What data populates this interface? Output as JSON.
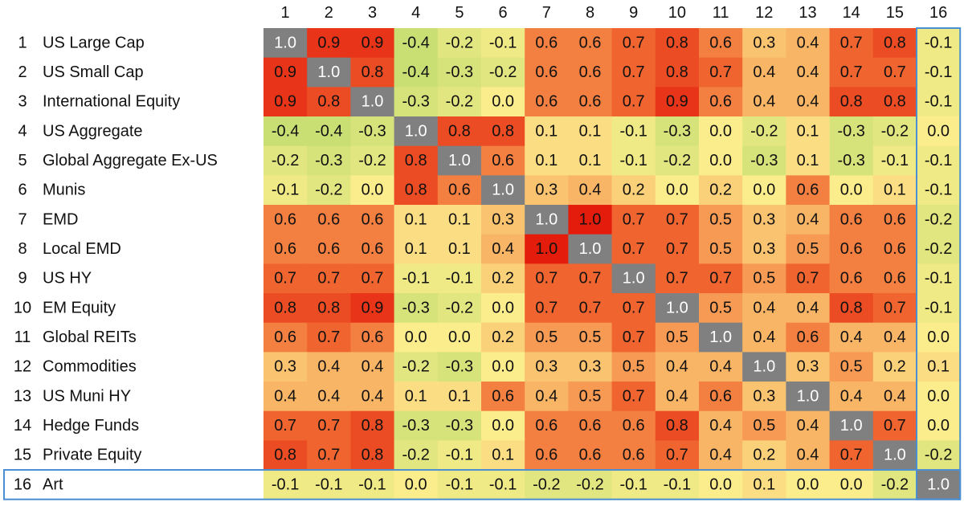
{
  "chart_data": {
    "type": "heatmap",
    "columns": [
      "1",
      "2",
      "3",
      "4",
      "5",
      "6",
      "7",
      "8",
      "9",
      "10",
      "11",
      "12",
      "13",
      "14",
      "15",
      "16"
    ],
    "row_numbers": [
      "1",
      "2",
      "3",
      "4",
      "5",
      "6",
      "7",
      "8",
      "9",
      "10",
      "11",
      "12",
      "13",
      "14",
      "15",
      "16"
    ],
    "row_names": [
      "US Large Cap",
      "US Small Cap",
      "International Equity",
      "US Aggregate",
      "Global Aggregate Ex-US",
      "Munis",
      "EMD",
      "Local EMD",
      "US HY",
      "EM Equity",
      "Global REITs",
      "Commodities",
      "US Muni HY",
      "Hedge Funds",
      "Private Equity",
      "Art"
    ],
    "values": [
      [
        1.0,
        0.9,
        0.9,
        -0.4,
        -0.2,
        -0.1,
        0.6,
        0.6,
        0.7,
        0.8,
        0.6,
        0.3,
        0.4,
        0.7,
        0.8,
        -0.1
      ],
      [
        0.9,
        1.0,
        0.8,
        -0.4,
        -0.3,
        -0.2,
        0.6,
        0.6,
        0.7,
        0.8,
        0.7,
        0.4,
        0.4,
        0.7,
        0.7,
        -0.1
      ],
      [
        0.9,
        0.8,
        1.0,
        -0.3,
        -0.2,
        0.0,
        0.6,
        0.6,
        0.7,
        0.9,
        0.6,
        0.4,
        0.4,
        0.8,
        0.8,
        -0.1
      ],
      [
        -0.4,
        -0.4,
        -0.3,
        1.0,
        0.8,
        0.8,
        0.1,
        0.1,
        -0.1,
        -0.3,
        0.0,
        -0.2,
        0.1,
        -0.3,
        -0.2,
        0.0
      ],
      [
        -0.2,
        -0.3,
        -0.2,
        0.8,
        1.0,
        0.6,
        0.1,
        0.1,
        -0.1,
        -0.2,
        0.0,
        -0.3,
        0.1,
        -0.3,
        -0.1,
        -0.1
      ],
      [
        -0.1,
        -0.2,
        0.0,
        0.8,
        0.6,
        1.0,
        0.3,
        0.4,
        0.2,
        0.0,
        0.2,
        0.0,
        0.6,
        0.0,
        0.1,
        -0.1
      ],
      [
        0.6,
        0.6,
        0.6,
        0.1,
        0.1,
        0.3,
        1.0,
        1.0,
        0.7,
        0.7,
        0.5,
        0.3,
        0.4,
        0.6,
        0.6,
        -0.2
      ],
      [
        0.6,
        0.6,
        0.6,
        0.1,
        0.1,
        0.4,
        1.0,
        1.0,
        0.7,
        0.7,
        0.5,
        0.3,
        0.5,
        0.6,
        0.6,
        -0.2
      ],
      [
        0.7,
        0.7,
        0.7,
        -0.1,
        -0.1,
        0.2,
        0.7,
        0.7,
        1.0,
        0.7,
        0.7,
        0.5,
        0.7,
        0.6,
        0.6,
        -0.1
      ],
      [
        0.8,
        0.8,
        0.9,
        -0.3,
        -0.2,
        0.0,
        0.7,
        0.7,
        0.7,
        1.0,
        0.5,
        0.4,
        0.4,
        0.8,
        0.7,
        -0.1
      ],
      [
        0.6,
        0.7,
        0.6,
        0.0,
        0.0,
        0.2,
        0.5,
        0.5,
        0.7,
        0.5,
        1.0,
        0.4,
        0.6,
        0.4,
        0.4,
        0.0
      ],
      [
        0.3,
        0.4,
        0.4,
        -0.2,
        -0.3,
        0.0,
        0.3,
        0.3,
        0.5,
        0.4,
        0.4,
        1.0,
        0.3,
        0.5,
        0.2,
        0.1
      ],
      [
        0.4,
        0.4,
        0.4,
        0.1,
        0.1,
        0.6,
        0.4,
        0.5,
        0.7,
        0.4,
        0.6,
        0.3,
        1.0,
        0.4,
        0.4,
        0.0
      ],
      [
        0.7,
        0.7,
        0.8,
        -0.3,
        -0.3,
        0.0,
        0.6,
        0.6,
        0.6,
        0.8,
        0.4,
        0.5,
        0.4,
        1.0,
        0.7,
        0.0
      ],
      [
        0.8,
        0.7,
        0.8,
        -0.2,
        -0.1,
        0.1,
        0.6,
        0.6,
        0.6,
        0.7,
        0.4,
        0.2,
        0.4,
        0.7,
        1.0,
        -0.2
      ],
      [
        -0.1,
        -0.1,
        -0.1,
        0.0,
        -0.1,
        -0.1,
        -0.2,
        -0.2,
        -0.1,
        -0.1,
        0.0,
        0.1,
        0.0,
        0.0,
        -0.2,
        1.0
      ]
    ],
    "value_labels": [
      [
        "1.0",
        "0.9",
        "0.9",
        "-0.4",
        "-0.2",
        "-0.1",
        "0.6",
        "0.6",
        "0.7",
        "0.8",
        "0.6",
        "0.3",
        "0.4",
        "0.7",
        "0.8",
        "-0.1"
      ],
      [
        "0.9",
        "1.0",
        "0.8",
        "-0.4",
        "-0.3",
        "-0.2",
        "0.6",
        "0.6",
        "0.7",
        "0.8",
        "0.7",
        "0.4",
        "0.4",
        "0.7",
        "0.7",
        "-0.1"
      ],
      [
        "0.9",
        "0.8",
        "1.0",
        "-0.3",
        "-0.2",
        "0.0",
        "0.6",
        "0.6",
        "0.7",
        "0.9",
        "0.6",
        "0.4",
        "0.4",
        "0.8",
        "0.8",
        "-0.1"
      ],
      [
        "-0.4",
        "-0.4",
        "-0.3",
        "1.0",
        "0.8",
        "0.8",
        "0.1",
        "0.1",
        "-0.1",
        "-0.3",
        "0.0",
        "-0.2",
        "0.1",
        "-0.3",
        "-0.2",
        "0.0"
      ],
      [
        "-0.2",
        "-0.3",
        "-0.2",
        "0.8",
        "1.0",
        "0.6",
        "0.1",
        "0.1",
        "-0.1",
        "-0.2",
        "0.0",
        "-0.3",
        "0.1",
        "-0.3",
        "-0.1",
        "-0.1"
      ],
      [
        "-0.1",
        "-0.2",
        "0.0",
        "0.8",
        "0.6",
        "1.0",
        "0.3",
        "0.4",
        "0.2",
        "0.0",
        "0.2",
        "0.0",
        "0.6",
        "0.0",
        "0.1",
        "-0.1"
      ],
      [
        "0.6",
        "0.6",
        "0.6",
        "0.1",
        "0.1",
        "0.3",
        "1.0",
        "1.0",
        "0.7",
        "0.7",
        "0.5",
        "0.3",
        "0.4",
        "0.6",
        "0.6",
        "-0.2"
      ],
      [
        "0.6",
        "0.6",
        "0.6",
        "0.1",
        "0.1",
        "0.4",
        "1.0",
        "1.0",
        "0.7",
        "0.7",
        "0.5",
        "0.3",
        "0.5",
        "0.6",
        "0.6",
        "-0.2"
      ],
      [
        "0.7",
        "0.7",
        "0.7",
        "-0.1",
        "-0.1",
        "0.2",
        "0.7",
        "0.7",
        "1.0",
        "0.7",
        "0.7",
        "0.5",
        "0.7",
        "0.6",
        "0.6",
        "-0.1"
      ],
      [
        "0.8",
        "0.8",
        "0.9",
        "-0.3",
        "-0.2",
        "0.0",
        "0.7",
        "0.7",
        "0.7",
        "1.0",
        "0.5",
        "0.4",
        "0.4",
        "0.8",
        "0.7",
        "-0.1"
      ],
      [
        "0.6",
        "0.7",
        "0.6",
        "0.0",
        "0.0",
        "0.2",
        "0.5",
        "0.5",
        "0.7",
        "0.5",
        "1.0",
        "0.4",
        "0.6",
        "0.4",
        "0.4",
        "0.0"
      ],
      [
        "0.3",
        "0.4",
        "0.4",
        "-0.2",
        "-0.3",
        "0.0",
        "0.3",
        "0.3",
        "0.5",
        "0.4",
        "0.4",
        "1.0",
        "0.3",
        "0.5",
        "0.2",
        "0.1"
      ],
      [
        "0.4",
        "0.4",
        "0.4",
        "0.1",
        "0.1",
        "0.6",
        "0.4",
        "0.5",
        "0.7",
        "0.4",
        "0.6",
        "0.3",
        "1.0",
        "0.4",
        "0.4",
        "0.0"
      ],
      [
        "0.7",
        "0.7",
        "0.8",
        "-0.3",
        "-0.3",
        "0.0",
        "0.6",
        "0.6",
        "0.6",
        "0.8",
        "0.4",
        "0.5",
        "0.4",
        "1.0",
        "0.7",
        "0.0"
      ],
      [
        "0.8",
        "0.7",
        "0.8",
        "-0.2",
        "-0.1",
        "0.1",
        "0.6",
        "0.6",
        "0.6",
        "0.7",
        "0.4",
        "0.2",
        "0.4",
        "0.7",
        "1.0",
        "-0.2"
      ],
      [
        "-0.1",
        "-0.1",
        "-0.1",
        "0.0",
        "-0.1",
        "-0.1",
        "-0.2",
        "-0.2",
        "-0.1",
        "-0.1",
        "0.0",
        "0.1",
        "0.0",
        "0.0",
        "-0.2",
        "1.0"
      ]
    ],
    "colorscale": [
      {
        "value": -0.4,
        "color": "#c9df74"
      },
      {
        "value": 0,
        "color": "#fbec8c"
      },
      {
        "value": 0.4,
        "color": "#f9b566"
      },
      {
        "value": 0.7,
        "color": "#f0642f"
      },
      {
        "value": 1,
        "color": "#e41c0c"
      }
    ],
    "diagonal_color": "#808080",
    "highlight_color": "#4a8fd4"
  }
}
